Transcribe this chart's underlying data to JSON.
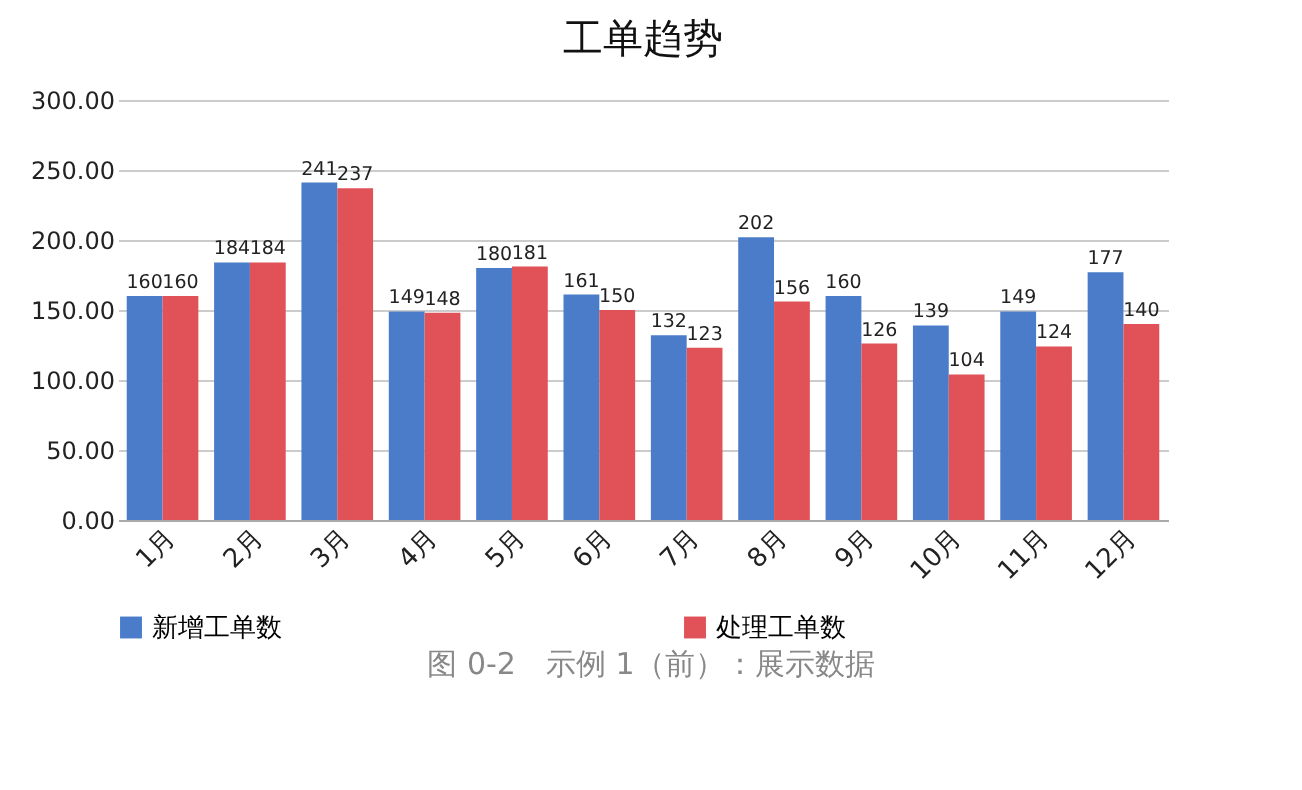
{
  "chart_data": {
    "type": "bar",
    "title": "工单趋势",
    "categories": [
      "1月",
      "2月",
      "3月",
      "4月",
      "5月",
      "6月",
      "7月",
      "8月",
      "9月",
      "10月",
      "11月",
      "12月"
    ],
    "series": [
      {
        "name": "新增工单数",
        "color": "#4a7cc9",
        "values": [
          160,
          184,
          241,
          149,
          180,
          161,
          132,
          202,
          160,
          139,
          149,
          177
        ]
      },
      {
        "name": "处理工单数",
        "color": "#e05257",
        "values": [
          160,
          184,
          237,
          148,
          181,
          150,
          123,
          156,
          126,
          104,
          124,
          140
        ]
      }
    ],
    "ylim": [
      0,
      300
    ],
    "yticks": [
      {
        "value": 0,
        "label": "0.00"
      },
      {
        "value": 50,
        "label": "50.00"
      },
      {
        "value": 100,
        "label": "100.00"
      },
      {
        "value": 150,
        "label": "150.00"
      },
      {
        "value": 200,
        "label": "200.00"
      },
      {
        "value": 250,
        "label": "250.00"
      },
      {
        "value": 300,
        "label": "300.00"
      }
    ],
    "grid": "y",
    "legend": "bottom",
    "data_labels": true,
    "annotations": [
      "图 0-2　示例 1（前）：展示数据"
    ]
  }
}
